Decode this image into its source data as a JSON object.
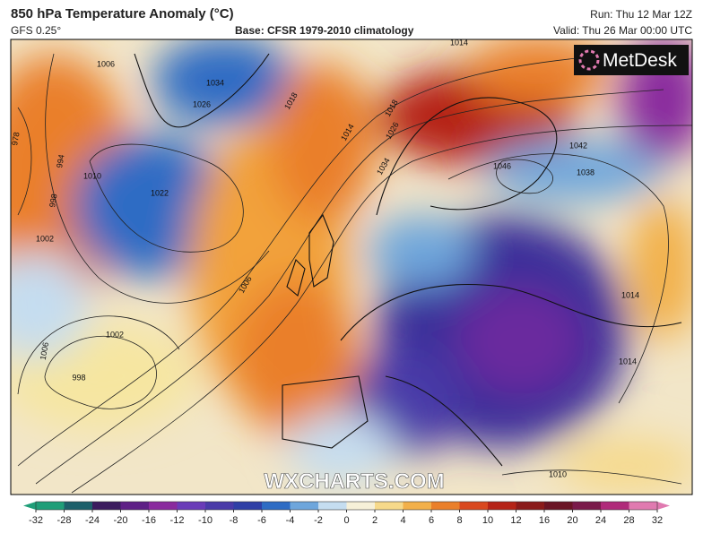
{
  "header": {
    "title": "850 hPa Temperature Anomaly (°C)",
    "model": "GFS 0.25°",
    "base": "Base: CFSR 1979-2010 climatology",
    "run": "Run: Thu 12 Mar 12Z",
    "valid": "Valid: Thu 26 Mar 00:00 UTC"
  },
  "logo": "MetDesk",
  "watermark": "WXCHARTS.COM",
  "isobar_labels": [
    "1006",
    "1034",
    "1026",
    "1018",
    "1014",
    "1018",
    "1014",
    "1026",
    "1034",
    "1046",
    "1042",
    "1038",
    "978",
    "994",
    "998",
    "1010",
    "1002",
    "1022",
    "1006",
    "1002",
    "1006",
    "998",
    "1014",
    "1014",
    "1010"
  ],
  "colorbar": {
    "ticks": [
      -32,
      -28,
      -24,
      -20,
      -16,
      -12,
      -10,
      -8,
      -6,
      -4,
      -2,
      0,
      2,
      4,
      6,
      8,
      10,
      12,
      16,
      20,
      24,
      28,
      32
    ],
    "colors": [
      "#1f9e78",
      "#1c5f6a",
      "#3b1b5e",
      "#5e1f86",
      "#8a2a9e",
      "#6a3bb8",
      "#4a3aa8",
      "#2f3fa6",
      "#2e6cc4",
      "#6ea6dc",
      "#c5ddf0",
      "#f6f0d8",
      "#f6d98a",
      "#f2b04a",
      "#ea7f2a",
      "#d9481f",
      "#b52317",
      "#8a1a1a",
      "#6a1424",
      "#7a1a4a",
      "#b02a7a",
      "#e07ab0"
    ]
  }
}
